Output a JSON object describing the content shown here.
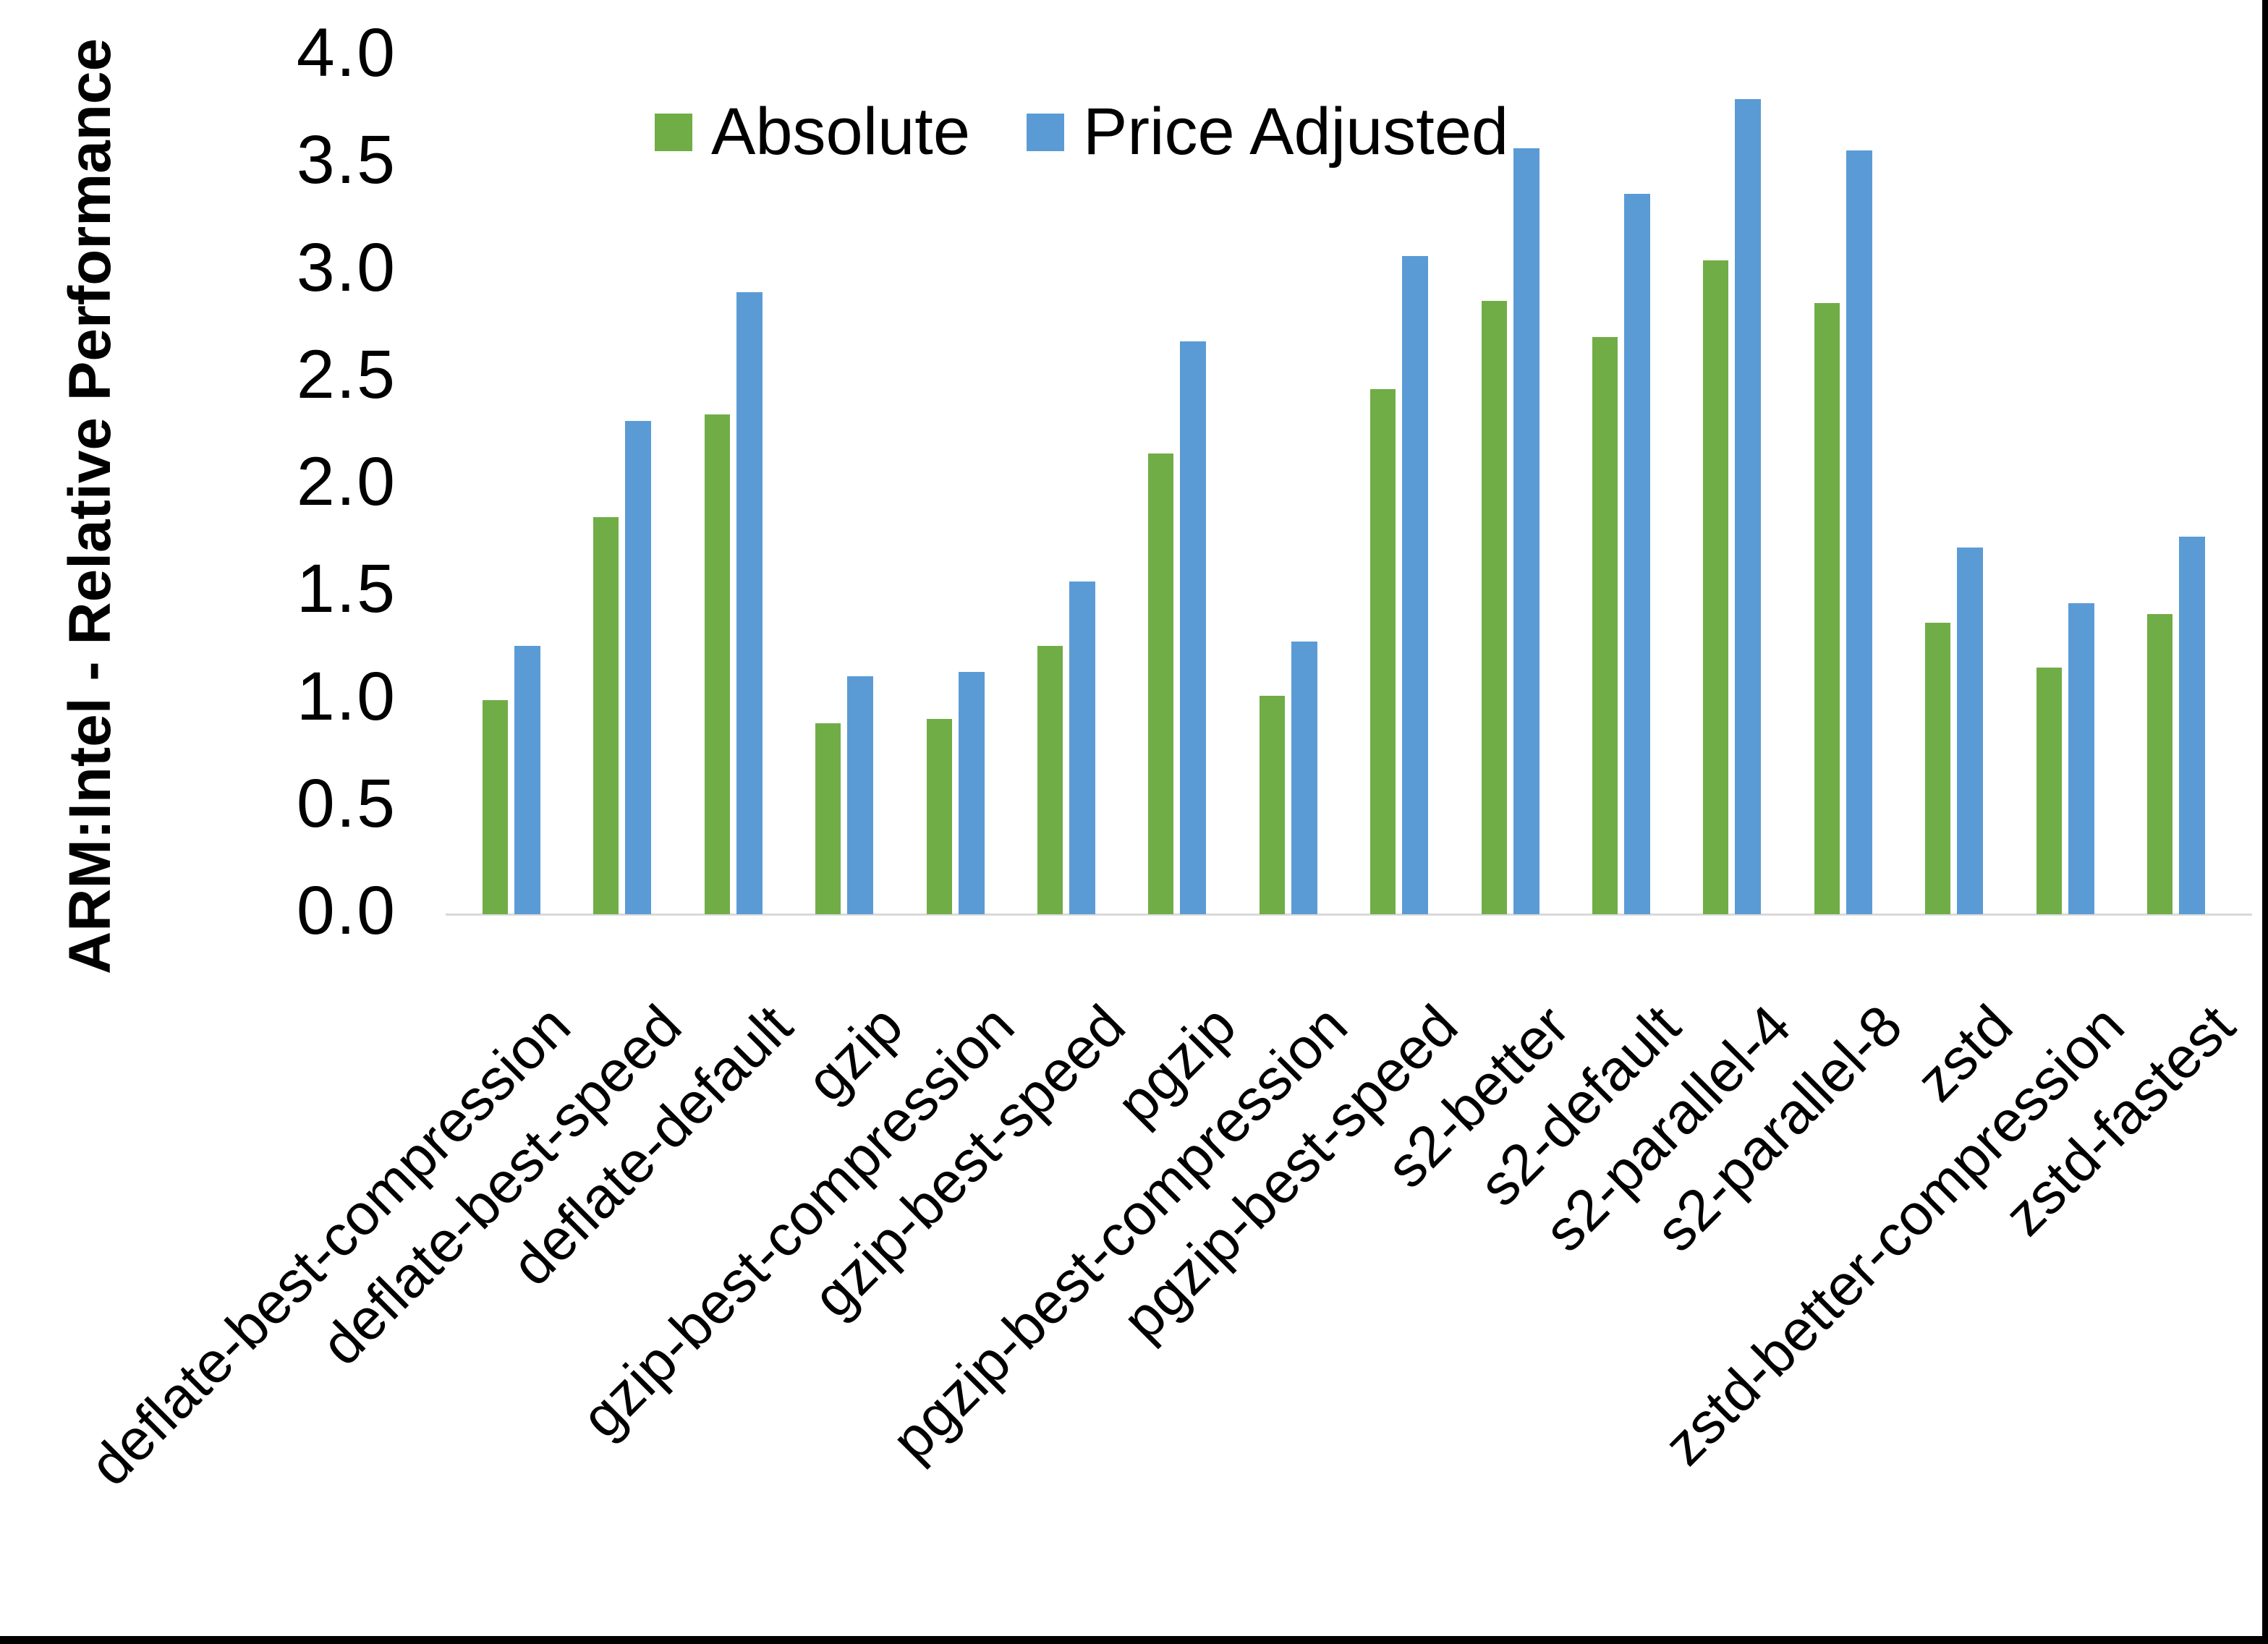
{
  "chart_data": {
    "type": "bar",
    "title": "",
    "ylabel": "ARM:Intel - Relative Performance",
    "xlabel": "",
    "ylim": [
      0.0,
      4.0
    ],
    "ytick_step": 0.5,
    "grid": false,
    "legend_position": "top-center",
    "axis_line_color": "#d9d9d9",
    "categories": [
      "deflate-best-compression",
      "deflate-best-speed",
      "deflate-default",
      "gzip",
      "gzip-best-compression",
      "gzip-best-speed",
      "pgzip",
      "pgzip-best-compression",
      "pgzip-best-speed",
      "s2-better",
      "s2-default",
      "s2-parallel-4",
      "s2-parallel-8",
      "zstd",
      "zstd-better-compression",
      "zstd-fastest"
    ],
    "series": [
      {
        "name": "Absolute",
        "color": "#70AD47",
        "values": [
          1.0,
          1.85,
          2.33,
          0.89,
          0.91,
          1.25,
          2.15,
          1.02,
          2.45,
          2.86,
          2.69,
          3.05,
          2.85,
          1.36,
          1.15,
          1.4
        ]
      },
      {
        "name": "Price Adjusted",
        "color": "#5B9BD5",
        "values": [
          1.25,
          2.3,
          2.9,
          1.11,
          1.13,
          1.55,
          2.67,
          1.27,
          3.07,
          3.57,
          3.36,
          3.8,
          3.56,
          1.71,
          1.45,
          1.76
        ]
      }
    ],
    "ytick_labels": [
      "0.0",
      "0.5",
      "1.0",
      "1.5",
      "2.0",
      "2.5",
      "3.0",
      "3.5",
      "4.0"
    ]
  }
}
